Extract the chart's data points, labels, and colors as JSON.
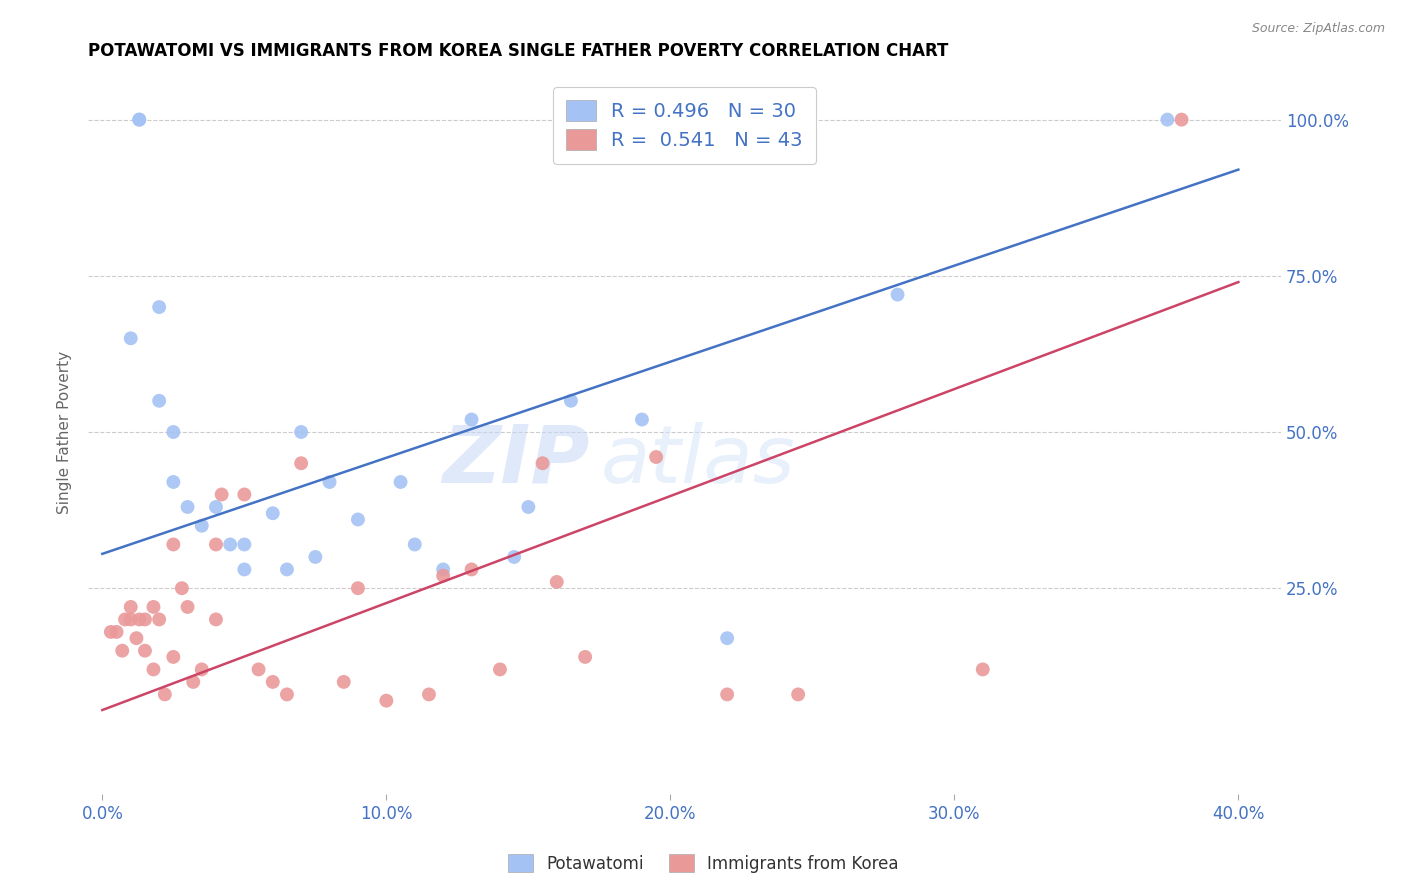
{
  "title": "POTAWATOMI VS IMMIGRANTS FROM KOREA SINGLE FATHER POVERTY CORRELATION CHART",
  "source": "Source: ZipAtlas.com",
  "xlabel_ticks": [
    "0.0%",
    "10.0%",
    "20.0%",
    "30.0%",
    "40.0%"
  ],
  "xlabel_tick_vals": [
    0.0,
    0.1,
    0.2,
    0.3,
    0.4
  ],
  "ylabel": "Single Father Poverty",
  "ylabel_ticks": [
    "25.0%",
    "50.0%",
    "75.0%",
    "100.0%"
  ],
  "ylabel_tick_vals": [
    0.25,
    0.5,
    0.75,
    1.0
  ],
  "xlim": [
    -0.005,
    0.415
  ],
  "ylim": [
    -0.08,
    1.08
  ],
  "blue_color": "#a4c2f4",
  "pink_color": "#ea9999",
  "blue_line_color": "#4472c4",
  "pink_line_color": "#cc4466",
  "legend_blue_label_prefix": "R = ",
  "legend_blue_label_value": "0.496",
  "legend_blue_label_n": "N = ",
  "legend_blue_label_nval": "30",
  "legend_pink_label_prefix": "R =  ",
  "legend_pink_label_value": "0.541",
  "legend_pink_label_n": "N = ",
  "legend_pink_label_nval": "43",
  "legend_series1": "Potawatomi",
  "legend_series2": "Immigrants from Korea",
  "watermark_zip": "ZIP",
  "watermark_atlas": "atlas",
  "blue_scatter_x": [
    0.013,
    0.013,
    0.02,
    0.01,
    0.02,
    0.025,
    0.025,
    0.03,
    0.035,
    0.04,
    0.045,
    0.05,
    0.05,
    0.06,
    0.065,
    0.07,
    0.075,
    0.08,
    0.09,
    0.105,
    0.11,
    0.12,
    0.13,
    0.145,
    0.15,
    0.165,
    0.19,
    0.22,
    0.28,
    0.375
  ],
  "blue_scatter_y": [
    1.0,
    1.0,
    0.7,
    0.65,
    0.55,
    0.5,
    0.42,
    0.38,
    0.35,
    0.38,
    0.32,
    0.32,
    0.28,
    0.37,
    0.28,
    0.5,
    0.3,
    0.42,
    0.36,
    0.42,
    0.32,
    0.28,
    0.52,
    0.3,
    0.38,
    0.55,
    0.52,
    0.17,
    0.72,
    1.0
  ],
  "pink_scatter_x": [
    0.003,
    0.005,
    0.007,
    0.008,
    0.01,
    0.01,
    0.012,
    0.013,
    0.015,
    0.015,
    0.018,
    0.018,
    0.02,
    0.022,
    0.025,
    0.025,
    0.028,
    0.03,
    0.032,
    0.035,
    0.04,
    0.04,
    0.042,
    0.05,
    0.055,
    0.06,
    0.065,
    0.07,
    0.085,
    0.09,
    0.1,
    0.115,
    0.12,
    0.13,
    0.14,
    0.155,
    0.16,
    0.17,
    0.195,
    0.22,
    0.245,
    0.31,
    0.38
  ],
  "pink_scatter_y": [
    0.18,
    0.18,
    0.15,
    0.2,
    0.2,
    0.22,
    0.17,
    0.2,
    0.15,
    0.2,
    0.12,
    0.22,
    0.2,
    0.08,
    0.32,
    0.14,
    0.25,
    0.22,
    0.1,
    0.12,
    0.32,
    0.2,
    0.4,
    0.4,
    0.12,
    0.1,
    0.08,
    0.45,
    0.1,
    0.25,
    0.07,
    0.08,
    0.27,
    0.28,
    0.12,
    0.45,
    0.26,
    0.14,
    0.46,
    0.08,
    0.08,
    0.12,
    1.0
  ],
  "blue_line_x": [
    0.0,
    0.4
  ],
  "blue_line_y0": 0.305,
  "blue_line_y1": 0.92,
  "pink_line_x": [
    0.0,
    0.4
  ],
  "pink_line_y0": 0.055,
  "pink_line_y1": 0.74,
  "background_color": "#ffffff",
  "grid_color": "#cccccc",
  "tick_color": "#4472c4",
  "title_color": "#000000",
  "marker_size": 100
}
